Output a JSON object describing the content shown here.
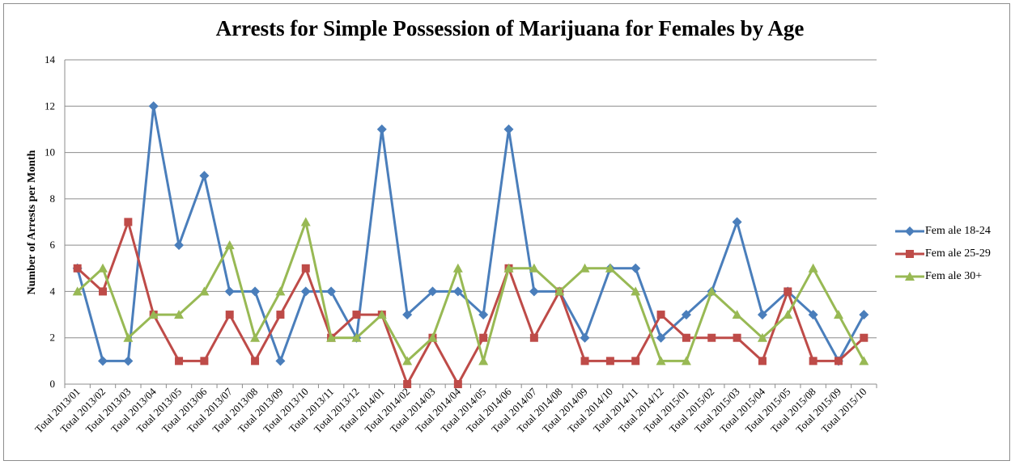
{
  "chart_data": {
    "type": "line",
    "title": "Arrests for Simple Possession of Marijuana for Females by Age",
    "xlabel": "",
    "ylabel": "Number  of Arrests per Month",
    "ylim": [
      0,
      14
    ],
    "yticks": [
      "0",
      "2",
      "4",
      "6",
      "8",
      "10",
      "12",
      "14"
    ],
    "grid": true,
    "legend_position": "right",
    "categories": [
      "Total 2013/01",
      "Total 2013/02",
      "Total 2013/03",
      "Total 2013/04",
      "Total 2013/05",
      "Total 2013/06",
      "Total 2013/07",
      "Total 2013/08",
      "Total 2013/09",
      "Total 2013/10",
      "Total 2013/11",
      "Total 2013/12",
      "Total 2014/01",
      "Total 2014/02",
      "Total 2014/03",
      "Total 2014/04",
      "Total 2014/05",
      "Total 2014/06",
      "Total 2014/07",
      "Total 2014/08",
      "Total 2014/09",
      "Total 2014/10",
      "Total 2014/11",
      "Total 2014/12",
      "Total 2015/01",
      "Total 2015/02",
      "Total 2015/03",
      "Total 2015/04",
      "Total 2015/05",
      "Total 2015/08",
      "Total 2015/09",
      "Total 2015/10"
    ],
    "series": [
      {
        "name": "Fem ale 18-24",
        "color": "#4a7ebb",
        "marker": "diamond",
        "values": [
          5,
          1,
          1,
          12,
          6,
          9,
          4,
          4,
          1,
          4,
          4,
          2,
          11,
          3,
          4,
          4,
          3,
          11,
          4,
          4,
          2,
          5,
          5,
          2,
          3,
          4,
          7,
          3,
          4,
          3,
          1,
          3
        ]
      },
      {
        "name": "Fem ale 25-29",
        "color": "#be4b48",
        "marker": "square",
        "values": [
          5,
          4,
          7,
          3,
          1,
          1,
          3,
          1,
          3,
          5,
          2,
          3,
          3,
          0,
          2,
          0,
          2,
          5,
          2,
          4,
          1,
          1,
          1,
          3,
          2,
          2,
          2,
          1,
          4,
          1,
          1,
          2
        ]
      },
      {
        "name": "Fem ale 30+",
        "color": "#98b954",
        "marker": "triangle",
        "values": [
          4,
          5,
          2,
          3,
          3,
          4,
          6,
          2,
          4,
          7,
          2,
          2,
          3,
          1,
          2,
          5,
          1,
          5,
          5,
          4,
          5,
          5,
          4,
          1,
          1,
          4,
          3,
          2,
          3,
          5,
          3,
          1
        ]
      }
    ]
  }
}
